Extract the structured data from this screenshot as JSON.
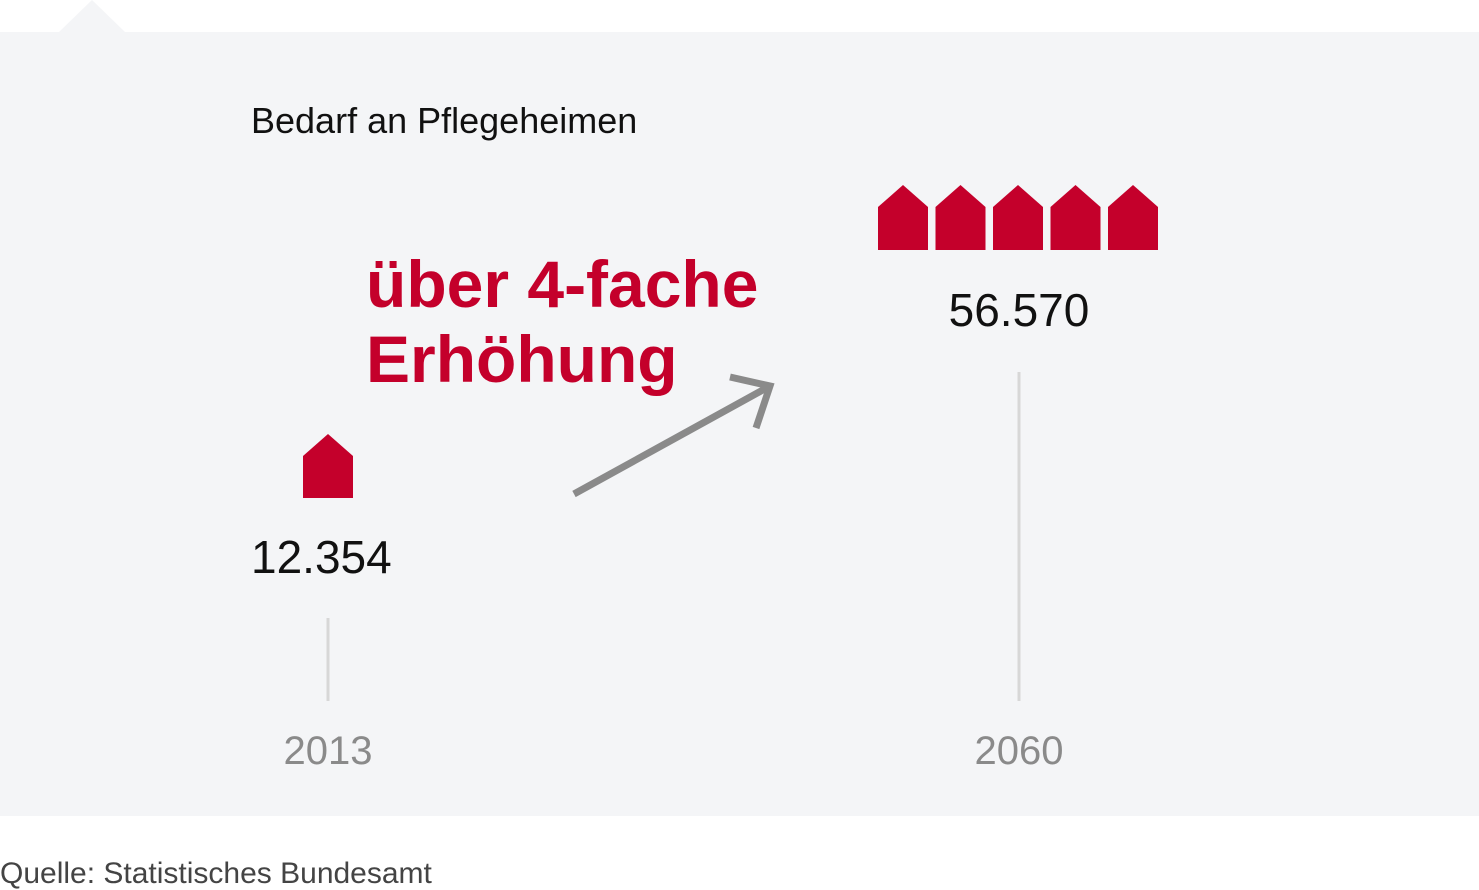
{
  "chart_data": {
    "type": "pictogram",
    "title": "Bedarf an Pflegeheimen",
    "categories": [
      "2013",
      "2060"
    ],
    "values": [
      12354,
      56570
    ],
    "value_labels": [
      "12.354",
      "56.570"
    ],
    "icons_per_category": [
      1,
      5
    ],
    "icon": "house-icon",
    "annotation": {
      "line1": "über 4-fache",
      "line2": "Erhöhung",
      "arrow": "up-right-arrow-icon"
    },
    "source": "Quelle: Statistisches Bundesamt",
    "colors": {
      "accent": "#c4002b",
      "background": "#f4f5f7",
      "arrow": "#8a8a8a",
      "guide_line": "#d7d7d7"
    }
  }
}
